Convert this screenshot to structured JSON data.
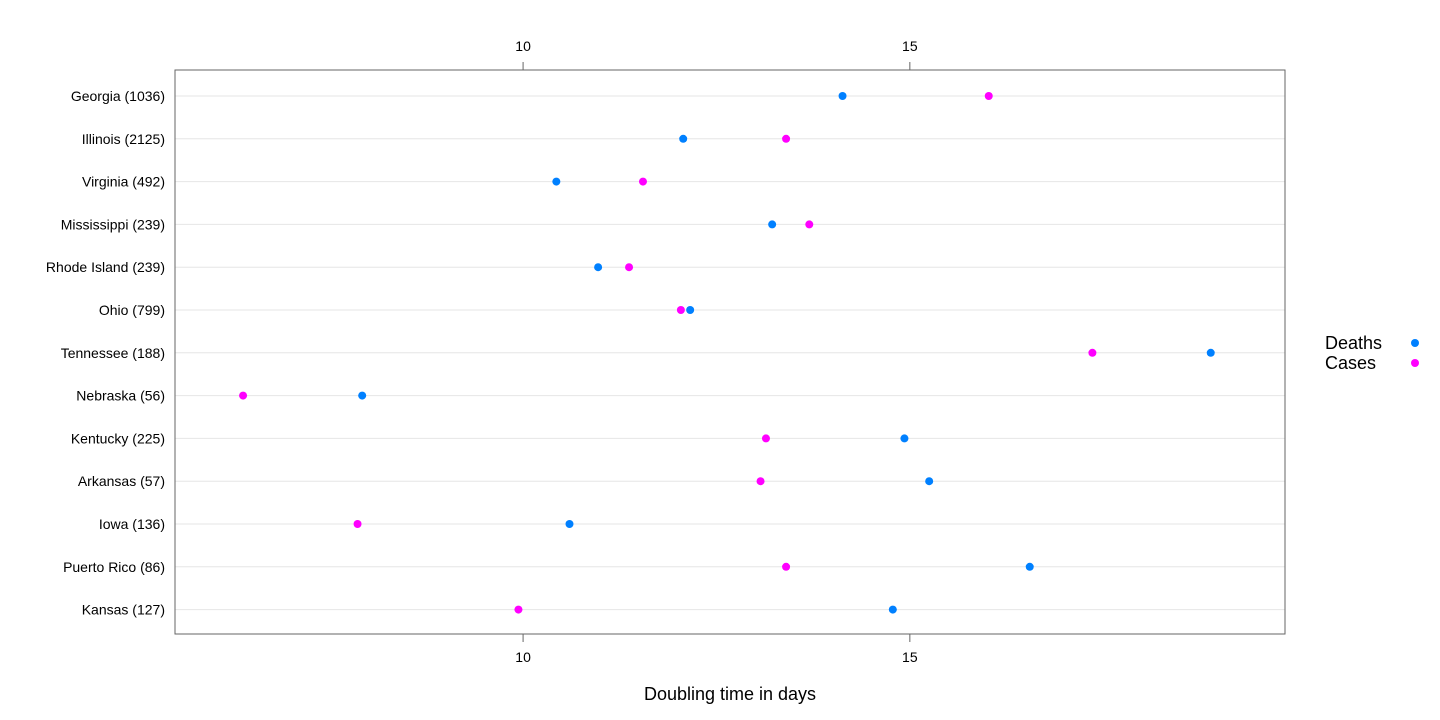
{
  "chart_data": {
    "type": "scatter",
    "title": "",
    "xlabel": "Doubling time in days",
    "ylabel": "",
    "xlim": [
      5.5,
      19.85
    ],
    "xticks": [
      10,
      15
    ],
    "grid": true,
    "legend_position": "right",
    "categories": [
      "Georgia (1036)",
      "Illinois (2125)",
      "Virginia (492)",
      "Mississippi (239)",
      "Rhode Island (239)",
      "Ohio (799)",
      "Tennessee (188)",
      "Nebraska (56)",
      "Kentucky (225)",
      "Arkansas (57)",
      "Iowa (136)",
      "Puerto Rico (86)",
      "Kansas (127)"
    ],
    "series": [
      {
        "name": "Deaths",
        "color": "#0080ff",
        "values": [
          14.13,
          12.07,
          10.43,
          13.22,
          10.97,
          12.16,
          18.89,
          7.92,
          14.93,
          15.25,
          10.6,
          16.55,
          14.78
        ]
      },
      {
        "name": "Cases",
        "color": "#ff00ff",
        "values": [
          16.02,
          13.4,
          11.55,
          13.7,
          11.37,
          12.04,
          17.36,
          6.38,
          13.14,
          13.07,
          7.86,
          13.4,
          9.94
        ]
      }
    ]
  }
}
